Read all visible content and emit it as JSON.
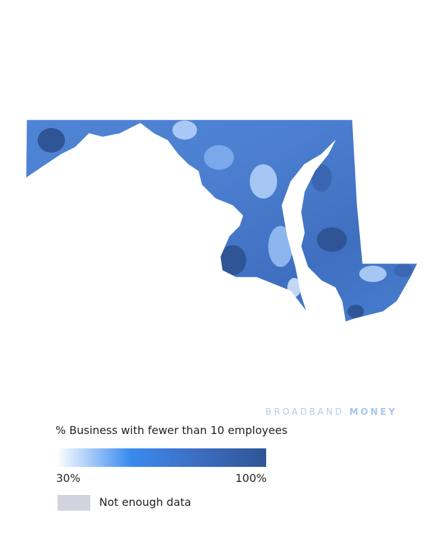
{
  "brand": {
    "name": "BROADBAND.",
    "suffix": "MONEY"
  },
  "legend": {
    "title": "% Business with fewer than 10 employees",
    "min_label": "30%",
    "max_label": "100%",
    "no_data": "Not enough data"
  }
}
